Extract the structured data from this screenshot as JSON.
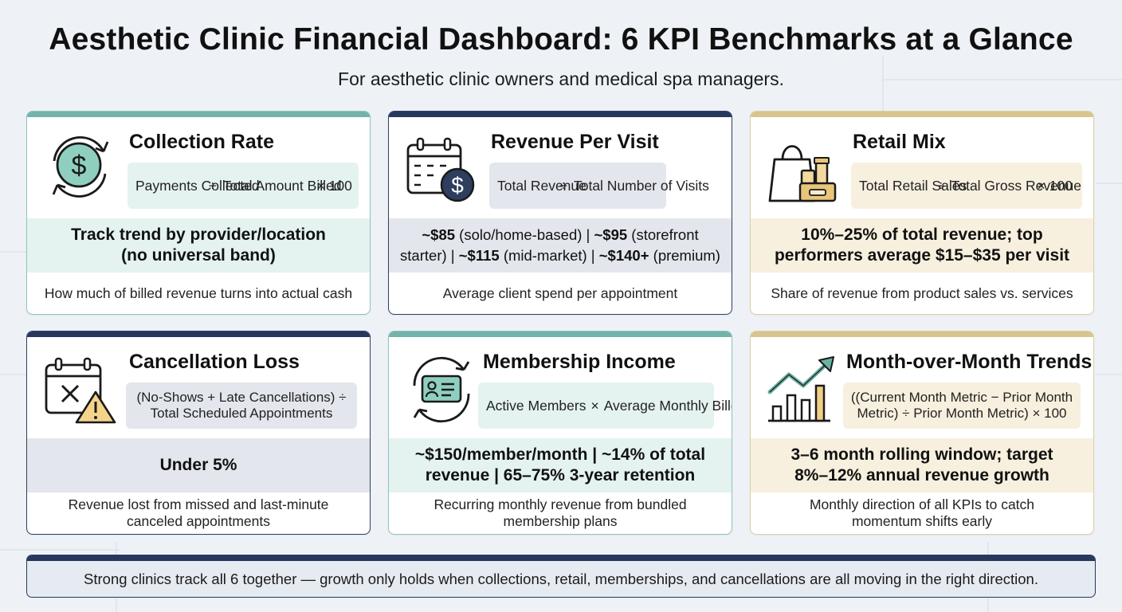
{
  "header": {
    "title": "Aesthetic Clinic Financial Dashboard: 6 KPI Benchmarks at a Glance",
    "subtitle": "For aesthetic clinic owners and medical spa managers."
  },
  "cards": [
    {
      "title": "Collection Rate",
      "accent": "teal",
      "icon": "dollar-cycle-icon",
      "formula": {
        "a": "Payments Collected",
        "op": "÷",
        "b": "Total Amount Billed",
        "suffix": "× 100"
      },
      "benchmark": "Track trend by provider/location (no universal band)",
      "description": "How much of billed revenue turns into actual cash"
    },
    {
      "title": "Revenue Per Visit",
      "accent": "navy",
      "icon": "calendar-dollar-icon",
      "formula": {
        "a": "Total Revenue",
        "op": "÷",
        "b": "Total Number of Visits",
        "suffix": ""
      },
      "benchmark_parts": [
        {
          "b": "~$85",
          "t": " (solo/home-based) | "
        },
        {
          "b": "~$95",
          "t": " (storefront starter) | "
        },
        {
          "b": "~$115",
          "t": " (mid-market) | "
        },
        {
          "b": "~$140+",
          "t": " (premium)"
        }
      ],
      "description": "Average client spend per appointment"
    },
    {
      "title": "Retail Mix",
      "accent": "gold",
      "icon": "shopping-bag-products-icon",
      "formula": {
        "a": "Total Retail Sales",
        "op": "÷",
        "b": "Total Gross Revenue",
        "suffix": "× 100"
      },
      "benchmark": "10%–25% of total revenue; top performers average $15–$35 per visit",
      "description": "Share of revenue from product sales vs. services"
    },
    {
      "title": "Cancellation Loss",
      "accent": "navy",
      "icon": "calendar-cancel-warning-icon",
      "formula_text": "(No-Shows + Late Cancellations) ÷ Total Scheduled Appointments",
      "benchmark": "Under 5%",
      "description": "Revenue lost from missed and last-minute canceled appointments"
    },
    {
      "title": "Membership Income",
      "accent": "teal",
      "icon": "member-card-cycle-icon",
      "formula": {
        "a": "Active Members",
        "op": "×",
        "b": "Average Monthly Billed Amount",
        "suffix": ""
      },
      "benchmark": "~$150/member/month | ~14% of total revenue | 65–75% 3-year retention",
      "description": "Recurring monthly revenue from bundled membership plans"
    },
    {
      "title": "Month-over-Month Trends",
      "accent": "gold",
      "icon": "bar-chart-trend-icon",
      "formula_text": "((Current Month Metric − Prior Month Metric) ÷ Prior Month Metric) × 100",
      "benchmark": "3–6 month rolling window; target 8%–12% annual revenue growth",
      "description": "Monthly direction of all KPIs to catch momentum shifts early"
    }
  ],
  "footer": {
    "text": "Strong clinics track all 6 together — growth only holds when collections, retail, memberships, and cancellations are all moving in the right direction."
  },
  "colors": {
    "teal": "#74b3ab",
    "navy": "#26385e",
    "gold": "#d8c48f",
    "background": "#eef2f7"
  }
}
